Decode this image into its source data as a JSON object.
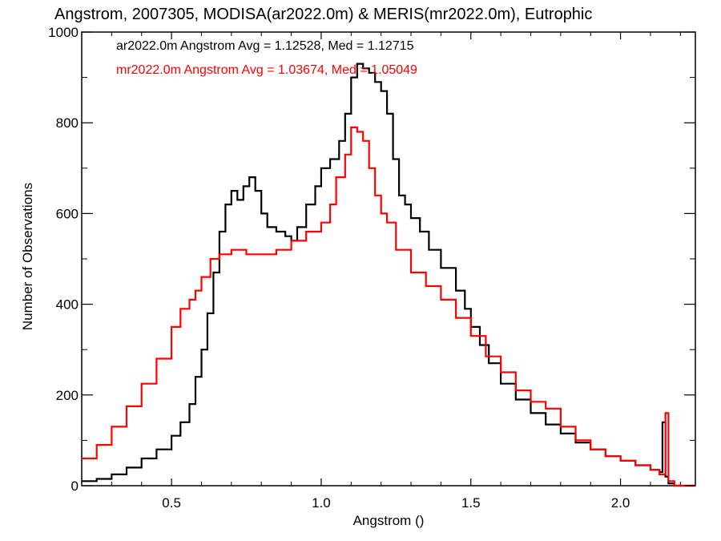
{
  "chart_data": {
    "type": "line",
    "title": "Angstrom, 2007305, MODISA(ar2022.0m) & MERIS(mr2022.0m), Eutrophic",
    "xlabel": "Angstrom ()",
    "ylabel": "Number of Observations",
    "xlim": [
      0.2,
      2.25
    ],
    "ylim": [
      0,
      1000
    ],
    "xticks": [
      0.5,
      1.0,
      1.5,
      2.0
    ],
    "xtick_labels": [
      "0.5",
      "1.0",
      "1.5",
      "2.0"
    ],
    "yticks": [
      0,
      200,
      400,
      600,
      800,
      1000
    ],
    "ytick_labels": [
      "0",
      "200",
      "400",
      "600",
      "800",
      "1000"
    ],
    "grid": false,
    "annotations": [
      {
        "text": "ar2022.0m Angstrom Avg = 1.12528, Med = 1.12715",
        "color": "#000000"
      },
      {
        "text": "mr2022.0m Angstrom Avg = 1.03674, Med = 1.05049",
        "color": "#ff0000"
      }
    ],
    "series": [
      {
        "name": "ar2022.0m",
        "color": "#000000",
        "x": [
          0.2,
          0.25,
          0.3,
          0.35,
          0.4,
          0.45,
          0.5,
          0.53,
          0.56,
          0.58,
          0.6,
          0.62,
          0.64,
          0.66,
          0.68,
          0.7,
          0.72,
          0.74,
          0.76,
          0.78,
          0.8,
          0.82,
          0.85,
          0.88,
          0.9,
          0.92,
          0.95,
          0.98,
          1.0,
          1.03,
          1.06,
          1.08,
          1.1,
          1.12,
          1.14,
          1.16,
          1.18,
          1.2,
          1.22,
          1.24,
          1.26,
          1.28,
          1.3,
          1.33,
          1.36,
          1.4,
          1.45,
          1.48,
          1.5,
          1.53,
          1.56,
          1.6,
          1.65,
          1.7,
          1.75,
          1.8,
          1.85,
          1.9,
          1.95,
          2.0,
          2.05,
          2.1,
          2.13,
          2.14,
          2.15,
          2.16,
          2.18,
          2.25
        ],
        "values": [
          10,
          15,
          25,
          40,
          60,
          80,
          110,
          140,
          180,
          240,
          300,
          380,
          470,
          560,
          620,
          650,
          630,
          660,
          680,
          650,
          600,
          570,
          560,
          550,
          540,
          570,
          620,
          660,
          700,
          720,
          760,
          820,
          900,
          930,
          920,
          910,
          890,
          870,
          820,
          720,
          640,
          620,
          590,
          560,
          520,
          480,
          430,
          390,
          350,
          310,
          270,
          225,
          190,
          160,
          135,
          115,
          95,
          80,
          65,
          55,
          45,
          35,
          30,
          140,
          20,
          5,
          0,
          0
        ]
      },
      {
        "name": "mr2022.0m",
        "color": "#ff0000",
        "x": [
          0.2,
          0.25,
          0.3,
          0.35,
          0.4,
          0.45,
          0.5,
          0.53,
          0.56,
          0.58,
          0.6,
          0.63,
          0.66,
          0.7,
          0.75,
          0.8,
          0.85,
          0.9,
          0.95,
          1.0,
          1.03,
          1.05,
          1.08,
          1.1,
          1.12,
          1.14,
          1.16,
          1.18,
          1.2,
          1.22,
          1.25,
          1.3,
          1.35,
          1.4,
          1.45,
          1.5,
          1.55,
          1.6,
          1.65,
          1.7,
          1.75,
          1.8,
          1.85,
          1.9,
          1.95,
          2.0,
          2.05,
          2.1,
          2.13,
          2.15,
          2.16,
          2.18,
          2.25
        ],
        "values": [
          60,
          90,
          130,
          175,
          225,
          280,
          350,
          390,
          410,
          430,
          460,
          500,
          510,
          520,
          510,
          510,
          520,
          540,
          560,
          580,
          620,
          680,
          730,
          790,
          780,
          760,
          700,
          640,
          600,
          580,
          520,
          470,
          440,
          410,
          370,
          330,
          285,
          250,
          210,
          185,
          170,
          130,
          100,
          80,
          65,
          55,
          45,
          35,
          25,
          160,
          10,
          0,
          0
        ]
      }
    ]
  }
}
